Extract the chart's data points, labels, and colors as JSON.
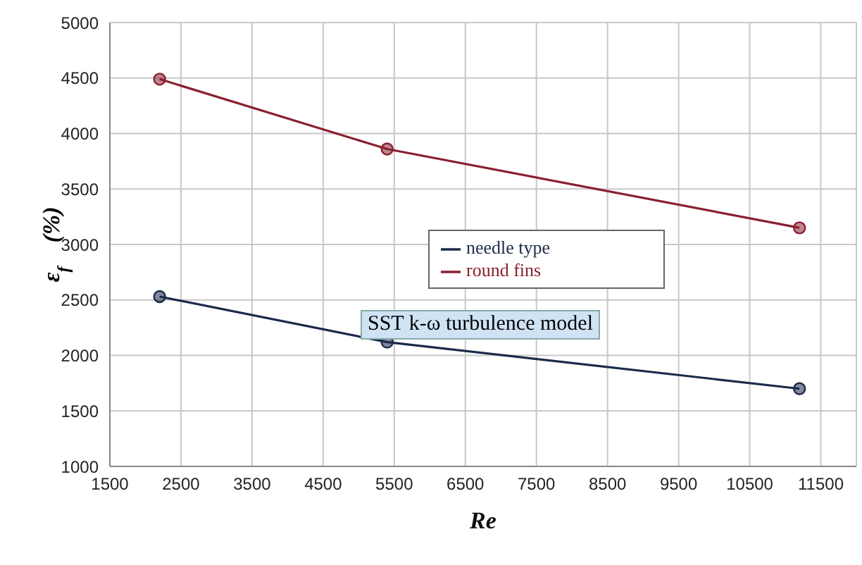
{
  "chart_data": {
    "type": "line",
    "xlabel": "Re",
    "ylabel": "ε$_{f}$    (%)",
    "xlim": [
      1500,
      12000
    ],
    "xticks": [
      1500,
      2500,
      3500,
      4500,
      5500,
      6500,
      7500,
      8500,
      9500,
      10500,
      11500
    ],
    "ylim": [
      1000,
      5000
    ],
    "yticks": [
      1000,
      1500,
      2000,
      2500,
      3000,
      3500,
      4000,
      4500,
      5000
    ],
    "grid": true,
    "legend": "center",
    "marker": "circle",
    "line_style": "solid",
    "annotations": [
      "SST k-ω turbulence model"
    ],
    "series": [
      {
        "name": "needle type",
        "color": "#1a2a4a",
        "x": [
          2200,
          5400,
          11200
        ],
        "values": [
          2530,
          2120,
          1700
        ]
      },
      {
        "name": "round fins",
        "color": "#8a2030",
        "x": [
          2200,
          5400,
          11200
        ],
        "values": [
          4490,
          3860,
          3150
        ]
      }
    ]
  }
}
